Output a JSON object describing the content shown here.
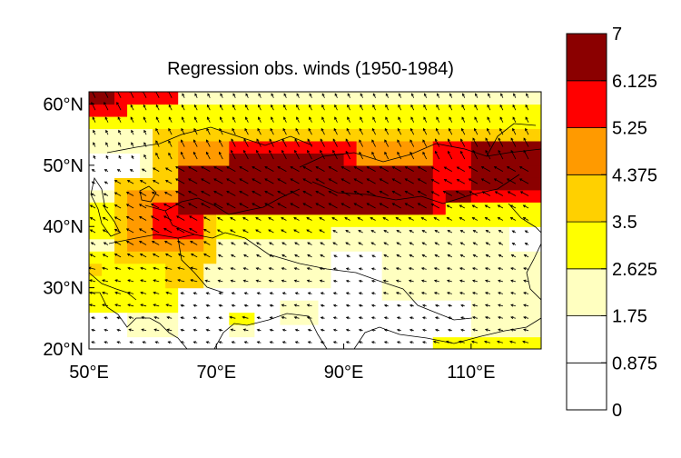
{
  "chart_data": {
    "type": "heatmap",
    "title": "Regression obs. winds (1950-1984)",
    "xlabel": "",
    "ylabel": "",
    "xlim": [
      50,
      120
    ],
    "ylim": [
      20,
      62
    ],
    "x_ticks": [
      {
        "value": 50,
        "label": "50°E"
      },
      {
        "value": 70,
        "label": "70°E"
      },
      {
        "value": 90,
        "label": "90°E"
      },
      {
        "value": 110,
        "label": "110°E"
      }
    ],
    "y_ticks": [
      {
        "value": 20,
        "label": "20°N"
      },
      {
        "value": 30,
        "label": "30°N"
      },
      {
        "value": 40,
        "label": "40°N"
      },
      {
        "value": 50,
        "label": "50°N"
      },
      {
        "value": 60,
        "label": "60°N"
      }
    ],
    "colorbar": {
      "boundaries": [
        0,
        0.875,
        1.75,
        2.625,
        3.5,
        4.375,
        5.25,
        6.125,
        7
      ],
      "labels": [
        "0",
        "0.875",
        "1.75",
        "2.625",
        "3.5",
        "4.375",
        "5.25",
        "6.125",
        "7"
      ],
      "colors": [
        "#ffffff",
        "#ffffff",
        "#ffffc0",
        "#ffff00",
        "#ffd000",
        "#ff9a00",
        "#ff0000",
        "#8b0000"
      ]
    },
    "grid": false,
    "regions": [
      {
        "level": 1,
        "lon": [
          50,
          121
        ],
        "lat": [
          20,
          62
        ]
      },
      {
        "level": 2,
        "lon": [
          50,
          121
        ],
        "lat": [
          53,
          62
        ]
      },
      {
        "level": 2,
        "lon": [
          58,
          88
        ],
        "lat": [
          30,
          56
        ]
      },
      {
        "level": 2,
        "lon": [
          50,
          62
        ],
        "lat": [
          26,
          46
        ]
      },
      {
        "level": 2,
        "lon": [
          88,
          116
        ],
        "lat": [
          36,
          42
        ]
      },
      {
        "level": 2,
        "lon": [
          96,
          121
        ],
        "lat": [
          28,
          36
        ]
      },
      {
        "level": 2,
        "lon": [
          110,
          121
        ],
        "lat": [
          22,
          30
        ]
      },
      {
        "level": 2,
        "lon": [
          56,
          64
        ],
        "lat": [
          22,
          28
        ]
      },
      {
        "level": 2,
        "lon": [
          72,
          76
        ],
        "lat": [
          22,
          24
        ]
      },
      {
        "level": 2,
        "lon": [
          80,
          86
        ],
        "lat": [
          24,
          28
        ]
      },
      {
        "level": 3,
        "lon": [
          50,
          121
        ],
        "lat": [
          56,
          60
        ]
      },
      {
        "level": 3,
        "lon": [
          50,
          58
        ],
        "lat": [
          38,
          44
        ]
      },
      {
        "level": 3,
        "lon": [
          50,
          64
        ],
        "lat": [
          26,
          36
        ]
      },
      {
        "level": 3,
        "lon": [
          60,
          88
        ],
        "lat": [
          38,
          56
        ]
      },
      {
        "level": 3,
        "lon": [
          84,
          106
        ],
        "lat": [
          40,
          48
        ]
      },
      {
        "level": 3,
        "lon": [
          100,
          121
        ],
        "lat": [
          40,
          56
        ]
      },
      {
        "level": 3,
        "lon": [
          72,
          76
        ],
        "lat": [
          24,
          26
        ]
      },
      {
        "level": 3,
        "lon": [
          104,
          121
        ],
        "lat": [
          20,
          22
        ]
      },
      {
        "level": 4,
        "lon": [
          54,
          70
        ],
        "lat": [
          34,
          48
        ]
      },
      {
        "level": 4,
        "lon": [
          60,
          121
        ],
        "lat": [
          46,
          56
        ]
      },
      {
        "level": 4,
        "lon": [
          62,
          68
        ],
        "lat": [
          30,
          34
        ]
      },
      {
        "level": 4,
        "lon": [
          50,
          52
        ],
        "lat": [
          32,
          34
        ]
      },
      {
        "level": 5,
        "lon": [
          64,
          121
        ],
        "lat": [
          48,
          54
        ]
      },
      {
        "level": 5,
        "lon": [
          56,
          68
        ],
        "lat": [
          36,
          46
        ]
      },
      {
        "level": 6,
        "lon": [
          50,
          56
        ],
        "lat": [
          58,
          62
        ]
      },
      {
        "level": 6,
        "lon": [
          56,
          64
        ],
        "lat": [
          60,
          62
        ]
      },
      {
        "level": 6,
        "lon": [
          72,
          92
        ],
        "lat": [
          50,
          54
        ]
      },
      {
        "level": 6,
        "lon": [
          66,
          70
        ],
        "lat": [
          44,
          48
        ]
      },
      {
        "level": 6,
        "lon": [
          60,
          68
        ],
        "lat": [
          38,
          44
        ]
      },
      {
        "level": 6,
        "lon": [
          104,
          121
        ],
        "lat": [
          44,
          54
        ]
      },
      {
        "level": 6,
        "lon": [
          96,
          106
        ],
        "lat": [
          42,
          48
        ]
      },
      {
        "level": 7,
        "lon": [
          50,
          54
        ],
        "lat": [
          60,
          62
        ]
      },
      {
        "level": 7,
        "lon": [
          64,
          104
        ],
        "lat": [
          42,
          50
        ]
      },
      {
        "level": 7,
        "lon": [
          72,
          90
        ],
        "lat": [
          50,
          52
        ]
      },
      {
        "level": 7,
        "lon": [
          110,
          121
        ],
        "lat": [
          46,
          54
        ]
      },
      {
        "level": 7,
        "lon": [
          106,
          110
        ],
        "lat": [
          44,
          46
        ]
      }
    ],
    "wind_field": "eastward-to-southwestward flow across Central Asia, strongest between 40°N and 50°N"
  }
}
